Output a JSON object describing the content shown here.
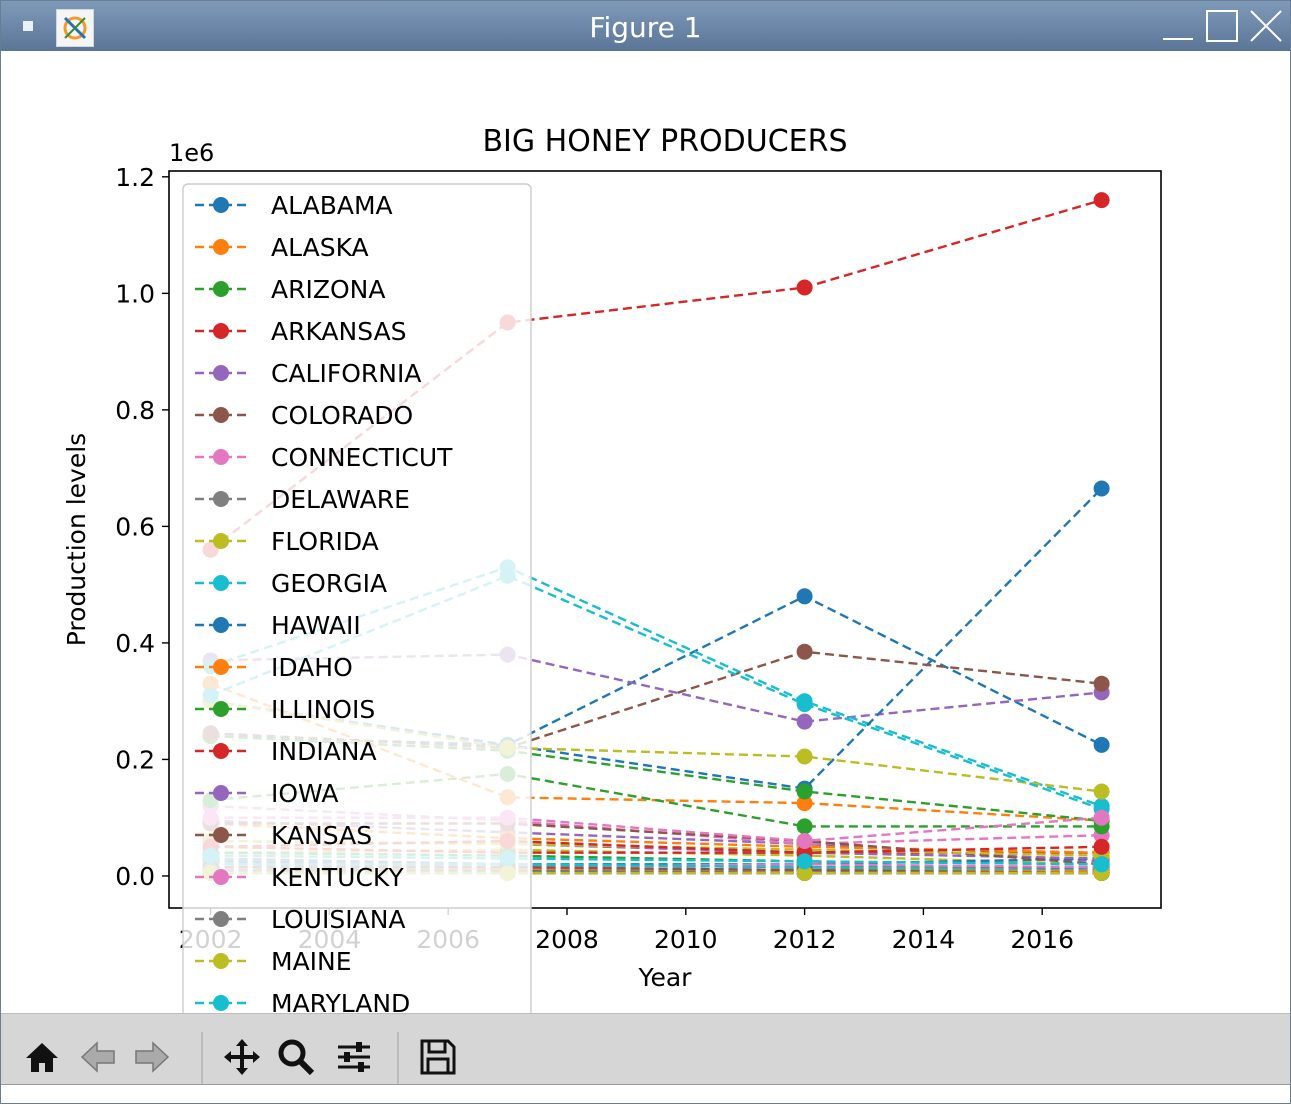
{
  "window": {
    "title": "Figure 1"
  },
  "toolbar": {
    "tools": [
      {
        "name": "home-icon",
        "label": "Home"
      },
      {
        "name": "back-icon",
        "label": "Back"
      },
      {
        "name": "forward-icon",
        "label": "Forward"
      },
      {
        "name": "pan-icon",
        "label": "Pan"
      },
      {
        "name": "zoom-icon",
        "label": "Zoom"
      },
      {
        "name": "configure-subplots-icon",
        "label": "Configure subplots"
      },
      {
        "name": "save-icon",
        "label": "Save"
      }
    ]
  },
  "chart_data": {
    "type": "line",
    "title": "BIG HONEY PRODUCERS",
    "xlabel": "Year",
    "ylabel": "Production levels",
    "y_scale_label": "1e6",
    "xlim": [
      2001.3,
      2018.0
    ],
    "ylim": [
      -55000,
      1210000
    ],
    "xticks": [
      2002,
      2004,
      2006,
      2008,
      2010,
      2012,
      2014,
      2016
    ],
    "yticks": [
      0.0,
      0.2,
      0.4,
      0.6,
      0.8,
      1.0,
      1.2
    ],
    "ytick_labels": [
      "0.0",
      "0.2",
      "0.4",
      "0.6",
      "0.8",
      "1.0",
      "1.2"
    ],
    "line_style": "dashed with circle markers",
    "legend_position": "upper left",
    "x": [
      2002,
      2007,
      2012,
      2017
    ],
    "series": [
      {
        "name": "ALABAMA",
        "color": "#1f77b4",
        "values": [
          300000,
          225000,
          480000,
          225000
        ]
      },
      {
        "name": "ALASKA",
        "color": "#ff7f0e",
        "values": [
          5000,
          5000,
          5000,
          5000
        ]
      },
      {
        "name": "ARIZONA",
        "color": "#2ca02c",
        "values": [
          20000,
          20000,
          15000,
          15000
        ]
      },
      {
        "name": "ARKANSAS",
        "color": "#d62728",
        "values": [
          560000,
          950000,
          1010000,
          1160000
        ]
      },
      {
        "name": "CALIFORNIA",
        "color": "#9467bd",
        "values": [
          370000,
          380000,
          265000,
          315000
        ]
      },
      {
        "name": "COLORADO",
        "color": "#8c564b",
        "values": [
          30000,
          20000,
          15000,
          10000
        ]
      },
      {
        "name": "CONNECTICUT",
        "color": "#e377c2",
        "values": [
          10000,
          8000,
          10000,
          8000
        ]
      },
      {
        "name": "DELAWARE",
        "color": "#7f7f7f",
        "values": [
          5000,
          5000,
          5000,
          5000
        ]
      },
      {
        "name": "FLORIDA",
        "color": "#bcbd22",
        "values": [
          40000,
          45000,
          35000,
          20000
        ]
      },
      {
        "name": "GEORGIA",
        "color": "#17becf",
        "values": [
          360000,
          530000,
          300000,
          120000
        ]
      },
      {
        "name": "HAWAII",
        "color": "#1f77b4",
        "values": [
          240000,
          225000,
          150000,
          665000
        ]
      },
      {
        "name": "IDAHO",
        "color": "#ff7f0e",
        "values": [
          330000,
          135000,
          125000,
          95000
        ]
      },
      {
        "name": "ILLINOIS",
        "color": "#2ca02c",
        "values": [
          240000,
          215000,
          145000,
          95000
        ]
      },
      {
        "name": "INDIANA",
        "color": "#d62728",
        "values": [
          50000,
          40000,
          40000,
          40000
        ]
      },
      {
        "name": "IOWA",
        "color": "#9467bd",
        "values": [
          95000,
          75000,
          55000,
          25000
        ]
      },
      {
        "name": "KANSAS",
        "color": "#8c564b",
        "values": [
          245000,
          220000,
          385000,
          330000
        ]
      },
      {
        "name": "KENTUCKY",
        "color": "#e377c2",
        "values": [
          120000,
          95000,
          55000,
          70000
        ]
      },
      {
        "name": "LOUISIANA",
        "color": "#7f7f7f",
        "values": [
          30000,
          10000,
          5000,
          5000
        ]
      },
      {
        "name": "MAINE",
        "color": "#bcbd22",
        "values": [
          300000,
          220000,
          205000,
          145000
        ]
      },
      {
        "name": "MARYLAND",
        "color": "#17becf",
        "values": [
          310000,
          515000,
          295000,
          115000
        ]
      },
      {
        "color": "#1f77b4",
        "values": [
          25000,
          20000,
          20000,
          30000
        ]
      },
      {
        "color": "#ff7f0e",
        "values": [
          90000,
          65000,
          50000,
          40000
        ]
      },
      {
        "color": "#2ca02c",
        "values": [
          130000,
          175000,
          85000,
          85000
        ]
      },
      {
        "color": "#d62728",
        "values": [
          10000,
          10000,
          10000,
          15000
        ]
      },
      {
        "color": "#9467bd",
        "values": [
          60000,
          55000,
          40000,
          30000
        ]
      },
      {
        "color": "#8c564b",
        "values": [
          90000,
          90000,
          60000,
          20000
        ]
      },
      {
        "color": "#e377c2",
        "values": [
          15000,
          15000,
          20000,
          15000
        ]
      },
      {
        "color": "#7f7f7f",
        "values": [
          20000,
          15000,
          10000,
          10000
        ]
      },
      {
        "color": "#bcbd22",
        "values": [
          60000,
          55000,
          45000,
          35000
        ]
      },
      {
        "color": "#17becf",
        "values": [
          20000,
          20000,
          15000,
          10000
        ]
      },
      {
        "color": "#1f77b4",
        "values": [
          10000,
          10000,
          5000,
          5000
        ]
      },
      {
        "color": "#ff7f0e",
        "values": [
          15000,
          12000,
          10000,
          8000
        ]
      },
      {
        "color": "#2ca02c",
        "values": [
          40000,
          35000,
          25000,
          20000
        ]
      },
      {
        "color": "#d62728",
        "values": [
          50000,
          60000,
          40000,
          50000
        ]
      },
      {
        "color": "#9467bd",
        "values": [
          5000,
          5000,
          5000,
          5000
        ]
      },
      {
        "color": "#8c564b",
        "values": [
          15000,
          15000,
          10000,
          5000
        ]
      },
      {
        "color": "#e377c2",
        "values": [
          100000,
          100000,
          60000,
          100000
        ]
      },
      {
        "color": "#7f7f7f",
        "values": [
          10000,
          5000,
          5000,
          5000
        ]
      },
      {
        "color": "#bcbd22",
        "values": [
          5000,
          5000,
          5000,
          5000
        ]
      },
      {
        "color": "#17becf",
        "values": [
          35000,
          30000,
          25000,
          20000
        ]
      }
    ]
  }
}
